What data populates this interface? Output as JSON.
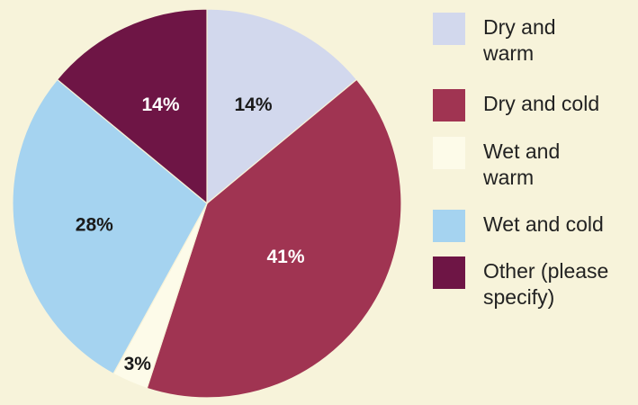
{
  "chart_data": {
    "type": "pie",
    "title": "",
    "labels": [
      "Dry and warm",
      "Dry and cold",
      "Wet and warm",
      "Wet and cold",
      "Other (please specify)"
    ],
    "values": [
      14,
      41,
      3,
      28,
      14
    ],
    "value_labels": [
      "14%",
      "41%",
      "3%",
      "28%",
      "14%"
    ],
    "colors": [
      "#d2d8ed",
      "#a03452",
      "#fdfbe9",
      "#a5d3f0",
      "#6e1545"
    ],
    "label_colors": [
      "#1a1a1a",
      "#ffffff",
      "#1a1a1a",
      "#1a1a1a",
      "#ffffff"
    ],
    "legend_placement": "right",
    "background": "#f7f3da"
  },
  "legend": {
    "items": [
      {
        "label": "Dry and\nwarm",
        "color": "#d2d8ed"
      },
      {
        "label": "Dry and cold",
        "color": "#a03452"
      },
      {
        "label": "Wet and\nwarm",
        "color": "#fdfbe9"
      },
      {
        "label": "Wet and cold",
        "color": "#a5d3f0"
      },
      {
        "label": "Other (please\nspecify)",
        "color": "#6e1545"
      }
    ]
  }
}
